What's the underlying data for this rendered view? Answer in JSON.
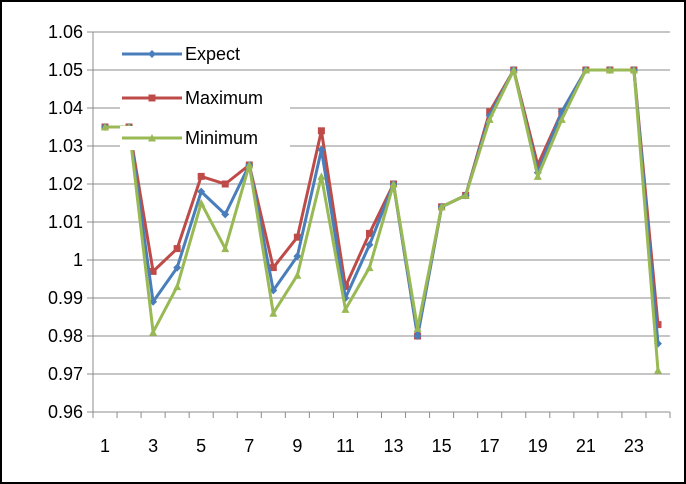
{
  "chart_data": {
    "type": "line",
    "title": "",
    "xlabel": "",
    "ylabel": "",
    "x": [
      1,
      2,
      3,
      4,
      5,
      6,
      7,
      8,
      9,
      10,
      11,
      12,
      13,
      14,
      15,
      16,
      17,
      18,
      19,
      20,
      21,
      22,
      23,
      24
    ],
    "x_tick_labels": [
      "1",
      "3",
      "5",
      "7",
      "9",
      "11",
      "13",
      "15",
      "17",
      "19",
      "21",
      "23"
    ],
    "x_tick_values": [
      1,
      3,
      5,
      7,
      9,
      11,
      13,
      15,
      17,
      19,
      21,
      23
    ],
    "y_tick_labels": [
      "0.96",
      "0.97",
      "0.98",
      "0.99",
      "1",
      "1.01",
      "1.02",
      "1.03",
      "1.04",
      "1.05",
      "1.06"
    ],
    "y_tick_values": [
      0.96,
      0.97,
      0.98,
      0.99,
      1,
      1.01,
      1.02,
      1.03,
      1.04,
      1.05,
      1.06
    ],
    "ylim": [
      0.96,
      1.06
    ],
    "xlim": [
      0.5,
      24.5
    ],
    "grid": "horizontal",
    "legend_position": "top-left",
    "series": [
      {
        "name": "Expect",
        "color": "#4a7ebb",
        "marker": "diamond",
        "values": [
          1.035,
          1.035,
          0.989,
          0.998,
          1.018,
          1.012,
          1.025,
          0.992,
          1.001,
          1.029,
          0.99,
          1.004,
          1.02,
          0.98,
          1.014,
          1.017,
          1.038,
          1.05,
          1.023,
          1.039,
          1.05,
          1.05,
          1.05,
          0.978
        ]
      },
      {
        "name": "Maximum",
        "color": "#be4b48",
        "marker": "square",
        "values": [
          1.035,
          1.035,
          0.997,
          1.003,
          1.022,
          1.02,
          1.025,
          0.998,
          1.006,
          1.034,
          0.993,
          1.007,
          1.02,
          0.98,
          1.014,
          1.017,
          1.039,
          1.05,
          1.025,
          1.039,
          1.05,
          1.05,
          1.05,
          0.983
        ]
      },
      {
        "name": "Minimum",
        "color": "#98b954",
        "marker": "triangle",
        "values": [
          1.035,
          1.035,
          0.981,
          0.993,
          1.015,
          1.003,
          1.025,
          0.986,
          0.996,
          1.022,
          0.987,
          0.998,
          1.02,
          0.982,
          1.014,
          1.017,
          1.037,
          1.05,
          1.022,
          1.037,
          1.05,
          1.05,
          1.05,
          0.971
        ]
      }
    ]
  }
}
